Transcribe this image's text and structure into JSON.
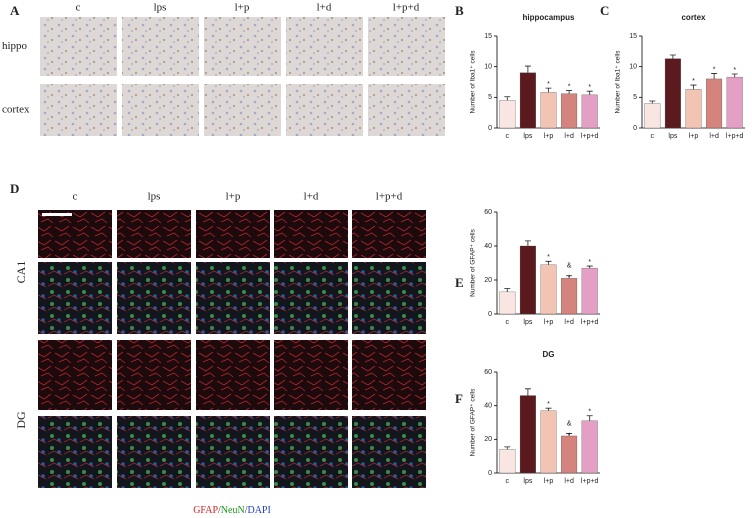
{
  "figure": {
    "letters": [
      "A",
      "B",
      "C",
      "D",
      "E",
      "F"
    ],
    "ihc_columns": [
      "c",
      "lps",
      "l+p",
      "l+d",
      "l+p+d"
    ],
    "ihc_rows": [
      "hippo",
      "cortex"
    ],
    "if_columns": [
      "c",
      "lps",
      "l+p",
      "l+d",
      "l+p+d"
    ],
    "if_rows": [
      "CA1",
      "DG"
    ],
    "stain_legend": [
      {
        "text": "GFAP",
        "color": "#d62020"
      },
      {
        "text": "/",
        "color": "#333333"
      },
      {
        "text": "NeuN",
        "color": "#1a9a1a"
      },
      {
        "text": "/",
        "color": "#333333"
      },
      {
        "text": "DAPI",
        "color": "#2040d0"
      }
    ]
  },
  "chart_data": [
    {
      "type": "bar",
      "title": "hippocampus",
      "ylabel": "Number of Iba1⁺ cells",
      "categories": [
        "c",
        "lps",
        "l+p",
        "l+d",
        "l+p+d"
      ],
      "values": [
        4.5,
        9,
        5.8,
        5.6,
        5.4
      ],
      "errors": [
        0.6,
        1.1,
        0.7,
        0.5,
        0.6
      ],
      "colors": [
        "#f9e6e2",
        "#5a1a1e",
        "#f2c4b4",
        "#d4847c",
        "#e4a0c4"
      ],
      "ylim": [
        0,
        15
      ],
      "yticks": [
        0,
        5,
        10,
        15
      ],
      "markers": [
        {
          "category": "l+p",
          "text": "*"
        },
        {
          "category": "l+d",
          "text": "*"
        },
        {
          "category": "l+p+d",
          "text": "*"
        }
      ]
    },
    {
      "type": "bar",
      "title": "cortex",
      "ylabel": "Number of Iba1⁺ cells",
      "categories": [
        "c",
        "lps",
        "l+p",
        "l+d",
        "l+p+d"
      ],
      "values": [
        4,
        11.3,
        6.3,
        8,
        8.3
      ],
      "errors": [
        0.4,
        0.6,
        0.7,
        0.9,
        0.5
      ],
      "colors": [
        "#f9e6e2",
        "#5a1a1e",
        "#f2c4b4",
        "#d4847c",
        "#e4a0c4"
      ],
      "ylim": [
        0,
        15
      ],
      "yticks": [
        0,
        5,
        10,
        15
      ],
      "markers": [
        {
          "category": "l+p",
          "text": "*"
        },
        {
          "category": "l+d",
          "text": "*"
        },
        {
          "category": "l+p+d",
          "text": "*"
        }
      ]
    },
    {
      "type": "bar",
      "title": "CA1",
      "ylabel": "Number of GFAP⁺ cells",
      "categories": [
        "c",
        "lps",
        "l+p",
        "l+d",
        "l+p+d"
      ],
      "values": [
        13,
        40,
        29,
        21,
        27
      ],
      "errors": [
        2,
        3,
        2,
        1.5,
        1.2
      ],
      "colors": [
        "#f9e6e2",
        "#5a1a1e",
        "#f2c4b4",
        "#d4847c",
        "#e4a0c4"
      ],
      "ylim": [
        0,
        60
      ],
      "yticks": [
        0,
        20,
        40,
        60
      ],
      "markers": [
        {
          "category": "l+p",
          "text": "*"
        },
        {
          "category": "l+d",
          "text": "&"
        },
        {
          "category": "l+d",
          "text": "*"
        },
        {
          "category": "l+p+d",
          "text": "*"
        }
      ]
    },
    {
      "type": "bar",
      "title": "DG",
      "ylabel": "Number of GFAP⁺ cells",
      "categories": [
        "c",
        "lps",
        "l+p",
        "l+d",
        "l+p+d"
      ],
      "values": [
        14,
        46,
        37,
        22,
        31
      ],
      "errors": [
        1.5,
        4,
        1.5,
        1.5,
        3
      ],
      "colors": [
        "#f9e6e2",
        "#5a1a1e",
        "#f2c4b4",
        "#d4847c",
        "#e4a0c4"
      ],
      "ylim": [
        0,
        60
      ],
      "yticks": [
        0,
        20,
        40,
        60
      ],
      "markers": [
        {
          "category": "l+p",
          "text": "*"
        },
        {
          "category": "l+d",
          "text": "&"
        },
        {
          "category": "l+d",
          "text": "*"
        },
        {
          "category": "l+p+d",
          "text": "*"
        }
      ]
    }
  ]
}
